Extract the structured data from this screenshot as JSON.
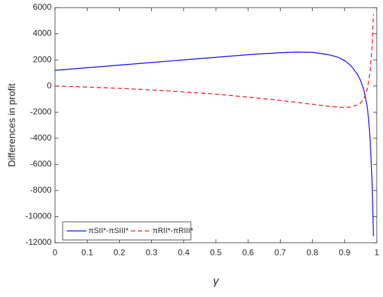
{
  "chart_data": {
    "type": "line",
    "xlabel": "γ",
    "ylabel": "Differences in profit",
    "x": [
      0,
      0.1,
      0.2,
      0.3,
      0.4,
      0.5,
      0.6,
      0.7,
      0.75,
      0.8,
      0.85,
      0.88,
      0.9,
      0.92,
      0.94,
      0.95,
      0.96,
      0.97,
      0.975,
      0.98,
      0.985,
      0.99
    ],
    "series": [
      {
        "name": "πSII*-πSIII*",
        "color": "#0000ff",
        "style": "solid",
        "values": [
          1200,
          1400,
          1600,
          1800,
          2000,
          2200,
          2400,
          2550,
          2600,
          2580,
          2400,
          2200,
          1950,
          1550,
          900,
          400,
          -300,
          -1500,
          -2600,
          -4300,
          -7000,
          -11500
        ]
      },
      {
        "name": "πRII*-πRIII*",
        "color": "#ff0000",
        "style": "dashed",
        "values": [
          0,
          -80,
          -180,
          -300,
          -450,
          -620,
          -850,
          -1100,
          -1250,
          -1400,
          -1550,
          -1620,
          -1650,
          -1600,
          -1450,
          -1300,
          -1000,
          -300,
          400,
          1300,
          2800,
          5500
        ]
      }
    ],
    "xlim": [
      0,
      1
    ],
    "ylim": [
      -12000,
      6000
    ],
    "xticks": [
      0,
      0.1,
      0.2,
      0.3,
      0.4,
      0.5,
      0.6,
      0.7,
      0.8,
      0.9,
      1
    ],
    "yticks": [
      -12000,
      -10000,
      -8000,
      -6000,
      -4000,
      -2000,
      0,
      2000,
      4000,
      6000
    ],
    "legend": "lower-left"
  }
}
